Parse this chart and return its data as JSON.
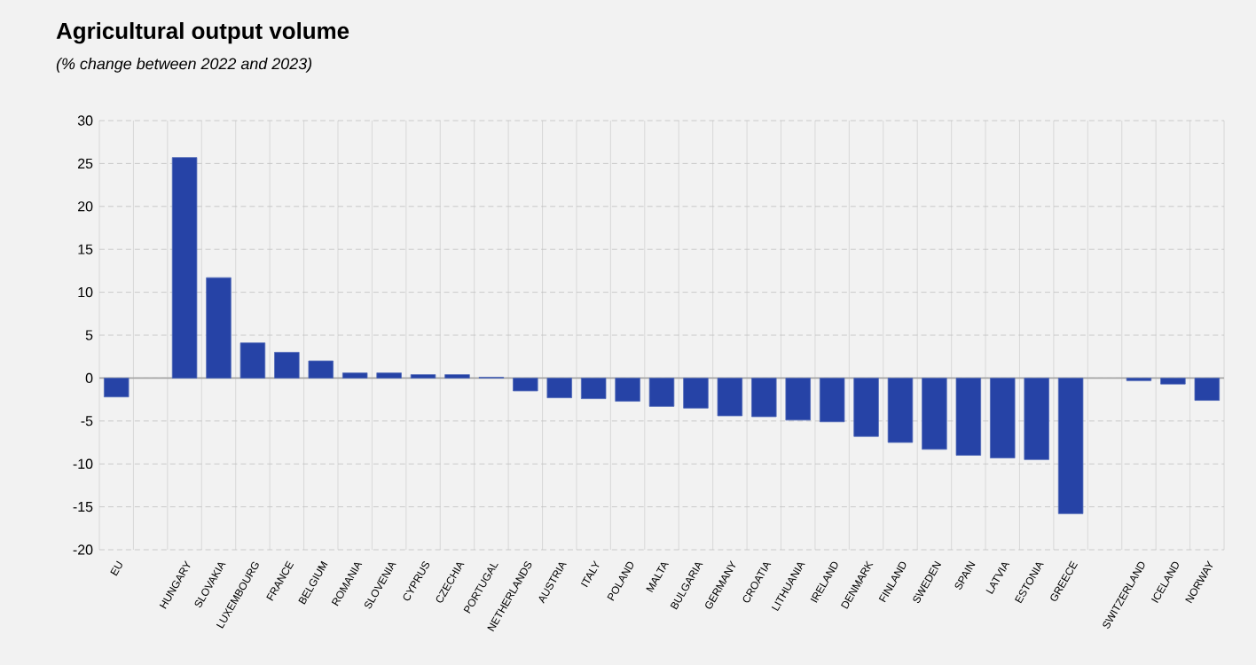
{
  "chart_data": {
    "type": "bar",
    "title": "Agricultural output volume",
    "subtitle": "(% change between 2022 and 2023)",
    "categories": [
      "EU",
      null,
      "HUNGARY",
      "SLOVAKIA",
      "LUXEMBOURG",
      "FRANCE",
      "BELGIUM",
      "ROMANIA",
      "SLOVENIA",
      "CYPRUS",
      "CZECHIA",
      "PORTUGAL",
      "NETHERLANDS",
      "AUSTRIA",
      "ITALY",
      "POLAND",
      "MALTA",
      "BULGARIA",
      "GERMANY",
      "CROATIA",
      "LITHUANIA",
      "IRELAND",
      "DENMARK",
      "FINLAND",
      "SWEDEN",
      "SPAIN",
      "LATVIA",
      "ESTONIA",
      "GREECE",
      null,
      "SWITZERLAND",
      "ICELAND",
      "NORWAY"
    ],
    "values": [
      -2.2,
      null,
      25.7,
      11.7,
      4.1,
      3.0,
      2.0,
      0.6,
      0.6,
      0.4,
      0.4,
      0.1,
      -1.5,
      -2.3,
      -2.4,
      -2.7,
      -3.3,
      -3.5,
      -4.4,
      -4.5,
      -4.9,
      -5.1,
      -6.8,
      -7.5,
      -8.3,
      -9.0,
      -9.3,
      -9.5,
      -15.8,
      null,
      -0.3,
      -0.7,
      -2.6
    ],
    "color": "#2643a6",
    "ylim": [
      -20,
      30
    ],
    "yticks": [
      -20,
      -15,
      -10,
      -5,
      0,
      5,
      10,
      15,
      20,
      25,
      30
    ],
    "grid": true
  }
}
